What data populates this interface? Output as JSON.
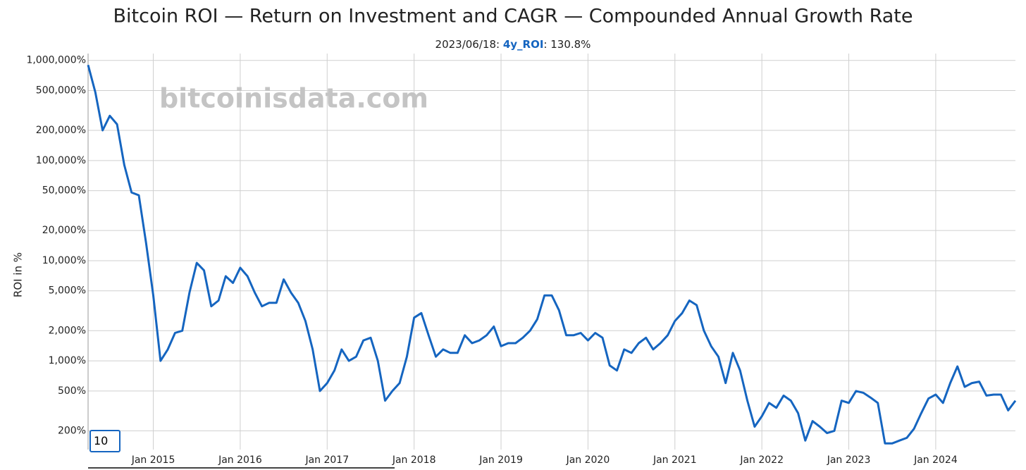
{
  "chart_data": {
    "type": "line",
    "title": "Bitcoin ROI — Return on Investment and CAGR — Compounded Annual Growth Rate",
    "tooltip": {
      "prefix": "2023/06/18: ",
      "suffix": ": 130.8%"
    },
    "watermark": "bitcoinisdata.com",
    "y_label": "ROI in %",
    "range_input": "10",
    "y_scale": "log",
    "grid": true,
    "ylim": [
      130,
      1170000
    ],
    "yticks": [
      {
        "value": 200,
        "label": "200%"
      },
      {
        "value": 500,
        "label": "500%"
      },
      {
        "value": 1000,
        "label": "1,000%"
      },
      {
        "value": 2000,
        "label": "2,000%"
      },
      {
        "value": 5000,
        "label": "5,000%"
      },
      {
        "value": 10000,
        "label": "10,000%"
      },
      {
        "value": 20000,
        "label": "20,000%"
      },
      {
        "value": 50000,
        "label": "50,000%"
      },
      {
        "value": 100000,
        "label": "100,000%"
      },
      {
        "value": 200000,
        "label": "200,000%"
      },
      {
        "value": 500000,
        "label": "500,000%"
      },
      {
        "value": 1000000,
        "label": "1,000,000%"
      }
    ],
    "xlim": [
      "2014-04",
      "2024-12"
    ],
    "xticks": [
      {
        "value": "2015-01",
        "label": "Jan 2015"
      },
      {
        "value": "2016-01",
        "label": "Jan 2016"
      },
      {
        "value": "2017-01",
        "label": "Jan 2017"
      },
      {
        "value": "2018-01",
        "label": "Jan 2018"
      },
      {
        "value": "2019-01",
        "label": "Jan 2019"
      },
      {
        "value": "2020-01",
        "label": "Jan 2020"
      },
      {
        "value": "2021-01",
        "label": "Jan 2021"
      },
      {
        "value": "2022-01",
        "label": "Jan 2022"
      },
      {
        "value": "2023-01",
        "label": "Jan 2023"
      },
      {
        "value": "2024-01",
        "label": "Jan 2024"
      }
    ],
    "x": [
      "2014-04",
      "2014-05",
      "2014-06",
      "2014-07",
      "2014-08",
      "2014-09",
      "2014-10",
      "2014-11",
      "2014-12",
      "2015-01",
      "2015-02",
      "2015-03",
      "2015-04",
      "2015-05",
      "2015-06",
      "2015-07",
      "2015-08",
      "2015-09",
      "2015-10",
      "2015-11",
      "2015-12",
      "2016-01",
      "2016-02",
      "2016-03",
      "2016-04",
      "2016-05",
      "2016-06",
      "2016-07",
      "2016-08",
      "2016-09",
      "2016-10",
      "2016-11",
      "2016-12",
      "2017-01",
      "2017-02",
      "2017-03",
      "2017-04",
      "2017-05",
      "2017-06",
      "2017-07",
      "2017-08",
      "2017-09",
      "2017-10",
      "2017-11",
      "2017-12",
      "2018-01",
      "2018-02",
      "2018-03",
      "2018-04",
      "2018-05",
      "2018-06",
      "2018-07",
      "2018-08",
      "2018-09",
      "2018-10",
      "2018-11",
      "2018-12",
      "2019-01",
      "2019-02",
      "2019-03",
      "2019-04",
      "2019-05",
      "2019-06",
      "2019-07",
      "2019-08",
      "2019-09",
      "2019-10",
      "2019-11",
      "2019-12",
      "2020-01",
      "2020-02",
      "2020-03",
      "2020-04",
      "2020-05",
      "2020-06",
      "2020-07",
      "2020-08",
      "2020-09",
      "2020-10",
      "2020-11",
      "2020-12",
      "2021-01",
      "2021-02",
      "2021-03",
      "2021-04",
      "2021-05",
      "2021-06",
      "2021-07",
      "2021-08",
      "2021-09",
      "2021-10",
      "2021-11",
      "2021-12",
      "2022-01",
      "2022-02",
      "2022-03",
      "2022-04",
      "2022-05",
      "2022-06",
      "2022-07",
      "2022-08",
      "2022-09",
      "2022-10",
      "2022-11",
      "2022-12",
      "2023-01",
      "2023-02",
      "2023-03",
      "2023-04",
      "2023-05",
      "2023-06",
      "2023-07",
      "2023-08",
      "2023-09",
      "2023-10",
      "2023-11",
      "2023-12",
      "2024-01",
      "2024-02",
      "2024-03",
      "2024-04",
      "2024-05",
      "2024-06",
      "2024-07",
      "2024-08",
      "2024-09",
      "2024-10",
      "2024-11",
      "2024-12"
    ],
    "series": [
      {
        "name": "4y_ROI",
        "color": "#1565c0",
        "values": [
          900000,
          480000,
          200000,
          280000,
          230000,
          90000,
          48000,
          45000,
          15000,
          4500,
          1000,
          1300,
          1900,
          2000,
          4800,
          9500,
          8000,
          3500,
          4000,
          7000,
          6000,
          8500,
          7000,
          4800,
          3500,
          3800,
          3800,
          6500,
          4800,
          3800,
          2500,
          1300,
          500,
          600,
          800,
          1300,
          1000,
          1100,
          1600,
          1700,
          1000,
          400,
          500,
          600,
          1100,
          2700,
          3000,
          1800,
          1100,
          1300,
          1200,
          1200,
          1800,
          1500,
          1600,
          1800,
          2200,
          1400,
          1500,
          1500,
          1700,
          2000,
          2600,
          4500,
          4500,
          3200,
          1800,
          1800,
          1900,
          1600,
          1900,
          1700,
          900,
          800,
          1300,
          1200,
          1500,
          1700,
          1300,
          1500,
          1800,
          2500,
          3000,
          4000,
          3600,
          2000,
          1400,
          1100,
          600,
          1200,
          800,
          400,
          220,
          280,
          380,
          340,
          450,
          400,
          300,
          160,
          250,
          220,
          190,
          200,
          400,
          380,
          500,
          480,
          430,
          380,
          150,
          150,
          160,
          170,
          210,
          300,
          420,
          460,
          380,
          600,
          880,
          550,
          600,
          620,
          450,
          460,
          460,
          320,
          400
        ]
      }
    ]
  }
}
